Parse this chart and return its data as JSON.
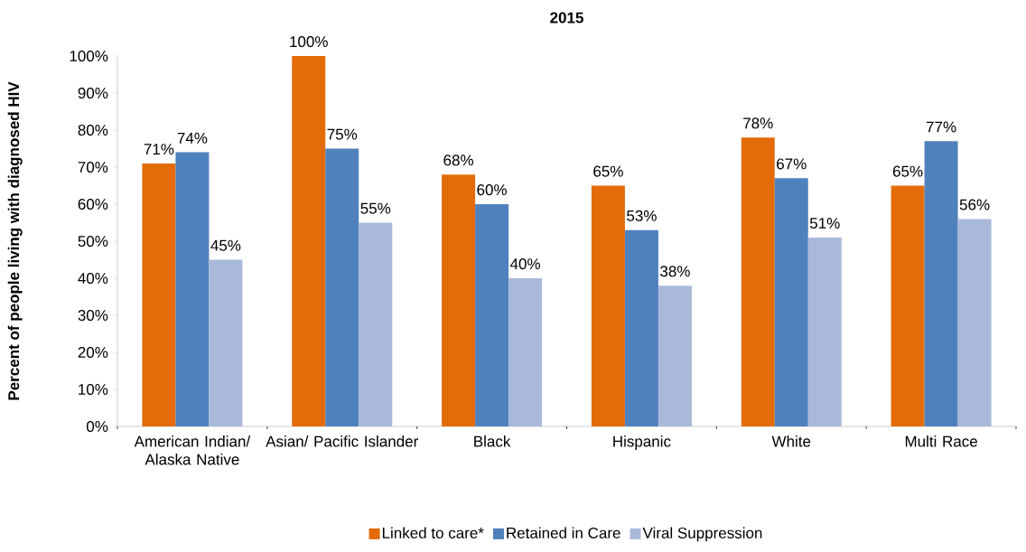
{
  "chart_data": {
    "type": "bar",
    "title": "2015",
    "ylabel": "Percent of people living with diagnosed HIV",
    "categories": [
      "American Indian/ Alaska Native",
      "Asian/ Pacific Islander",
      "Black",
      "Hispanic",
      "White",
      "Multi Race"
    ],
    "series": [
      {
        "name": "Linked to care*",
        "color": "#e36c09",
        "values": [
          71,
          100,
          68,
          65,
          78,
          65
        ],
        "value_labels": [
          "71%",
          "100%",
          "68%",
          "65%",
          "78%",
          "65%"
        ]
      },
      {
        "name": "Retained in Care",
        "color": "#4f81bd",
        "values": [
          74,
          75,
          60,
          53,
          67,
          77
        ],
        "value_labels": [
          "74%",
          "75%",
          "60%",
          "53%",
          "67%",
          "77%"
        ]
      },
      {
        "name": "Viral Suppression",
        "color": "#a9b9da",
        "values": [
          45,
          55,
          40,
          38,
          51,
          56
        ],
        "value_labels": [
          "45%",
          "55%",
          "40%",
          "38%",
          "51%",
          "56%"
        ]
      }
    ],
    "ylim": [
      0,
      100
    ],
    "yticks": [
      {
        "value": 0,
        "label": "0%"
      },
      {
        "value": 10,
        "label": "10%"
      },
      {
        "value": 20,
        "label": "20%"
      },
      {
        "value": 30,
        "label": "30%"
      },
      {
        "value": 40,
        "label": "40%"
      },
      {
        "value": 50,
        "label": "50%"
      },
      {
        "value": 60,
        "label": "60%"
      },
      {
        "value": 70,
        "label": "70%"
      },
      {
        "value": 80,
        "label": "80%"
      },
      {
        "value": 90,
        "label": "90%"
      },
      {
        "value": 100,
        "label": "100%"
      }
    ],
    "legend": "bottom"
  }
}
